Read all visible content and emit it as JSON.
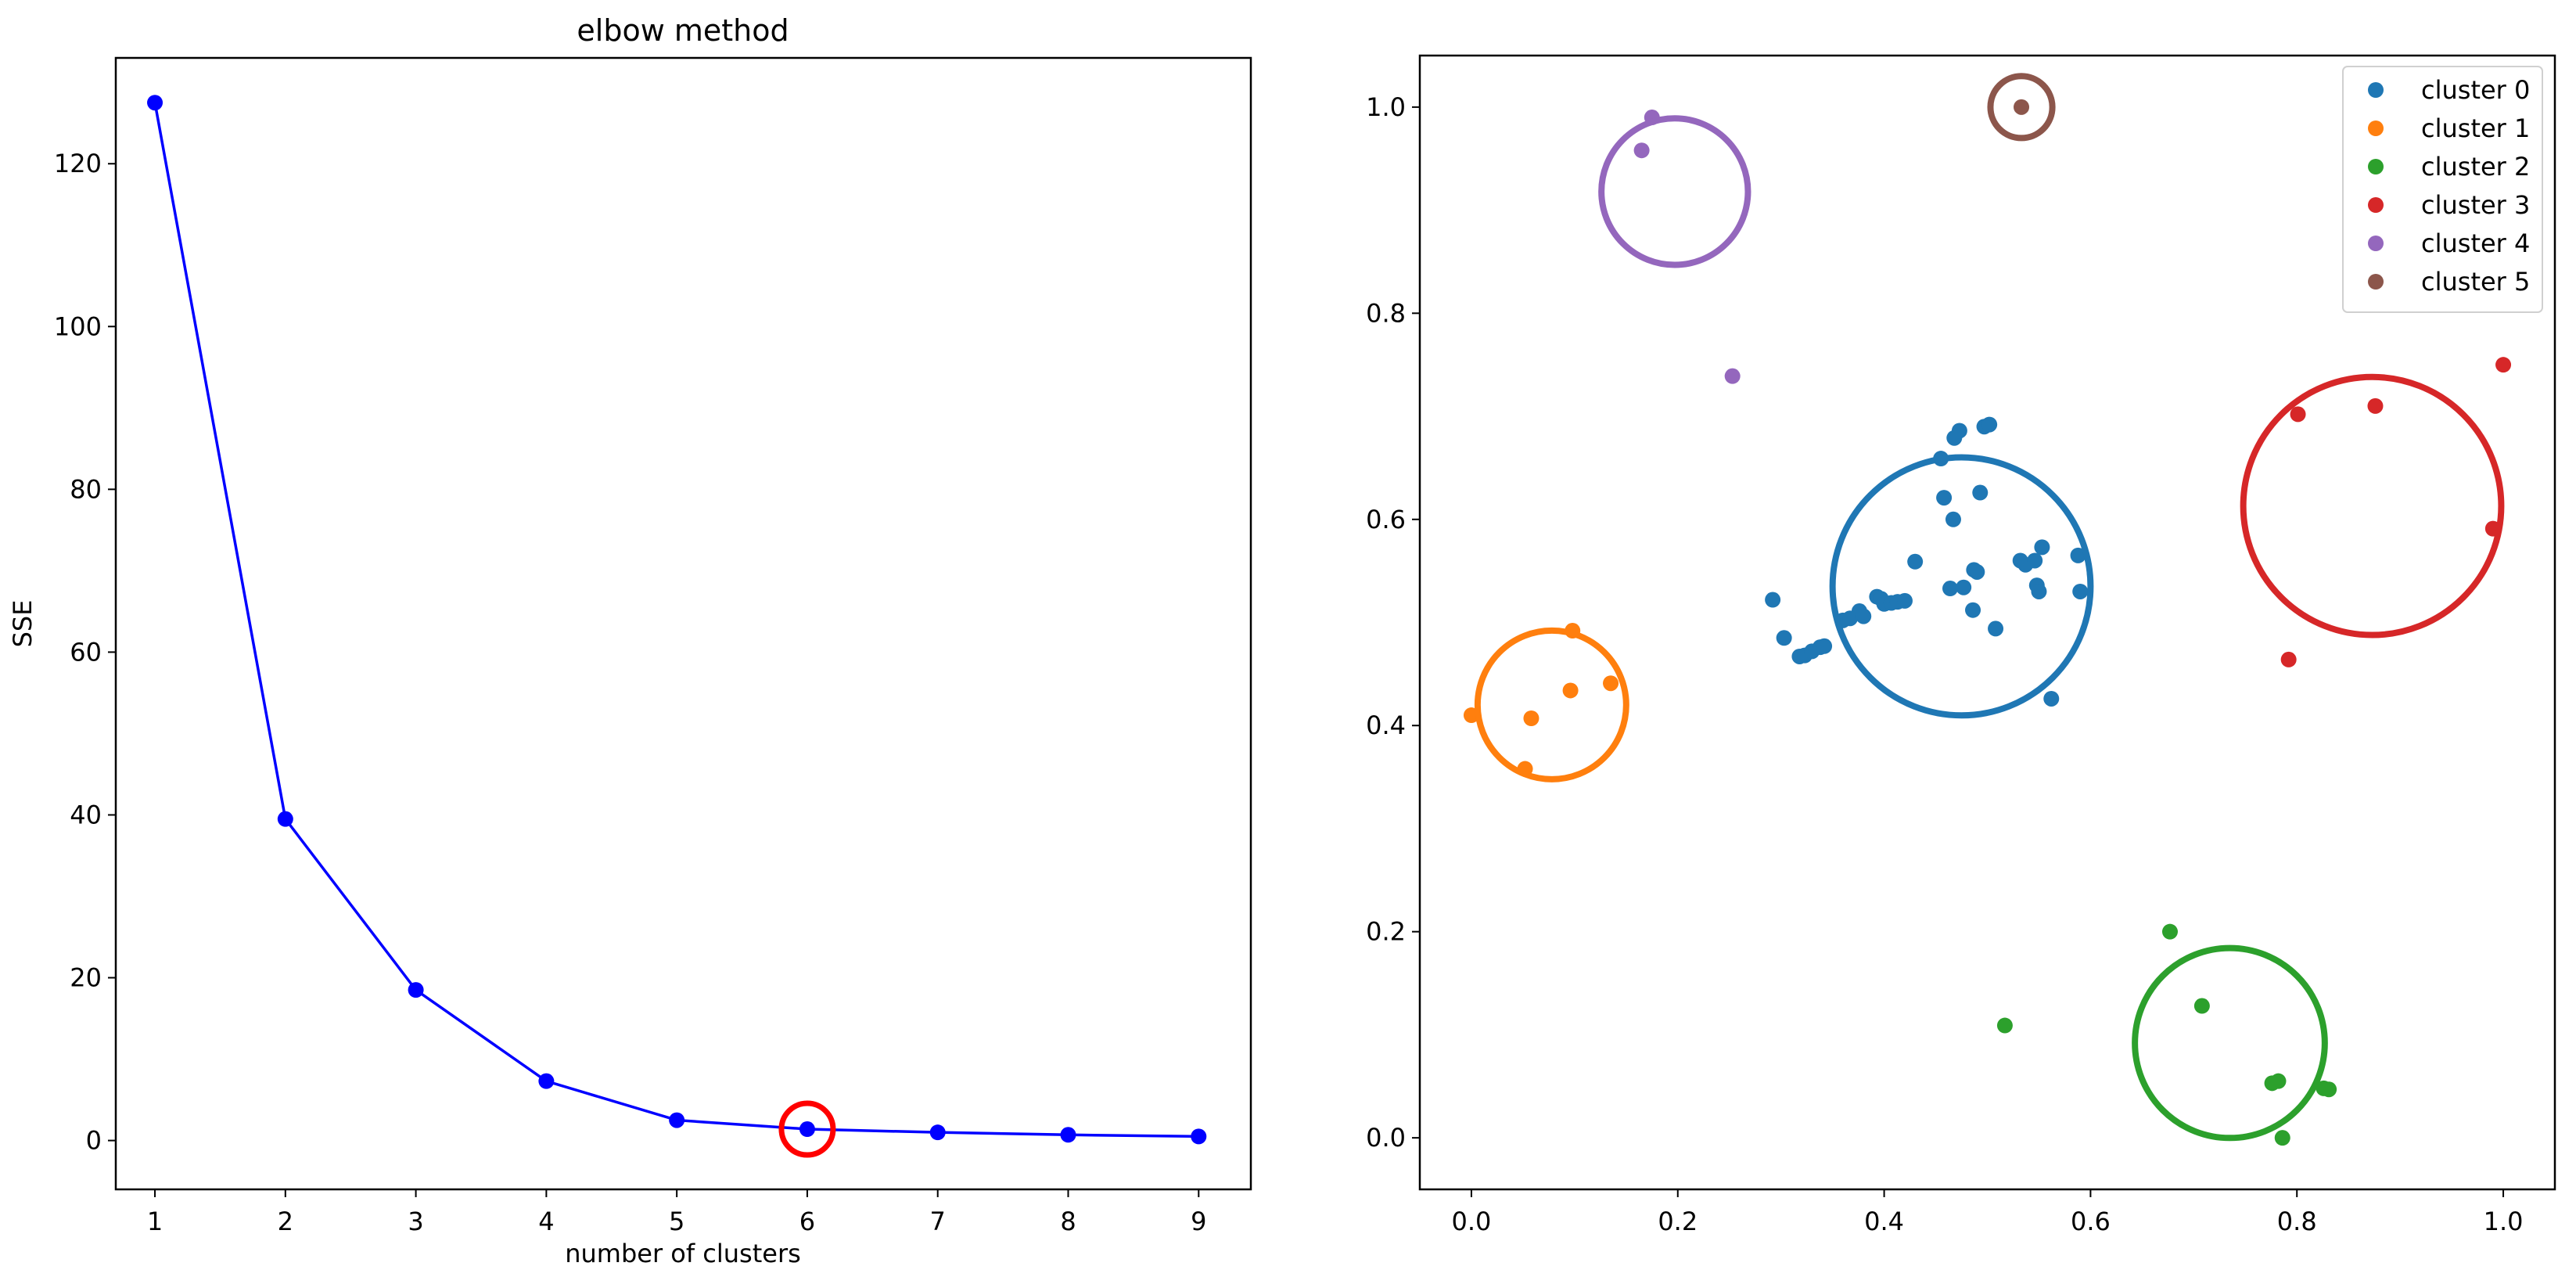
{
  "chart_data": [
    {
      "type": "line",
      "title": "elbow method",
      "xlabel": "number of clusters",
      "ylabel": "SSE",
      "xlim": [
        0.7,
        9.4
      ],
      "ylim": [
        -6,
        133
      ],
      "xticks": [
        1,
        2,
        3,
        4,
        5,
        6,
        7,
        8,
        9
      ],
      "yticks": [
        0,
        20,
        40,
        60,
        80,
        100,
        120
      ],
      "grid": false,
      "series": [
        {
          "color": "#0000ff",
          "marker": "circle",
          "x": [
            1,
            2,
            3,
            4,
            5,
            6,
            7,
            8,
            9
          ],
          "y": [
            127.5,
            39.5,
            18.5,
            7.3,
            2.5,
            1.4,
            1.0,
            0.7,
            0.5
          ]
        }
      ],
      "annotations": [
        {
          "shape": "circle",
          "x": 6,
          "y": 1.4,
          "color": "#ff0000"
        }
      ]
    },
    {
      "type": "scatter",
      "title": "",
      "xlabel": "",
      "ylabel": "",
      "xlim": [
        -0.05,
        1.05
      ],
      "ylim": [
        -0.05,
        1.05
      ],
      "xticks": [
        0.0,
        0.2,
        0.4,
        0.6,
        0.8,
        1.0
      ],
      "yticks": [
        0.0,
        0.2,
        0.4,
        0.6,
        0.8,
        1.0
      ],
      "grid": false,
      "legend": {
        "position": "top-right"
      },
      "series": [
        {
          "name": "cluster 0",
          "color": "#1f77b4",
          "points": [
            [
              0.292,
              0.522
            ],
            [
              0.303,
              0.485
            ],
            [
              0.318,
              0.467
            ],
            [
              0.323,
              0.468
            ],
            [
              0.33,
              0.472
            ],
            [
              0.338,
              0.476
            ],
            [
              0.342,
              0.477
            ],
            [
              0.36,
              0.502
            ],
            [
              0.367,
              0.504
            ],
            [
              0.376,
              0.511
            ],
            [
              0.38,
              0.506
            ],
            [
              0.393,
              0.525
            ],
            [
              0.397,
              0.523
            ],
            [
              0.4,
              0.518
            ],
            [
              0.407,
              0.519
            ],
            [
              0.413,
              0.52
            ],
            [
              0.42,
              0.521
            ],
            [
              0.43,
              0.559
            ],
            [
              0.455,
              0.659
            ],
            [
              0.458,
              0.621
            ],
            [
              0.464,
              0.533
            ],
            [
              0.467,
              0.6
            ],
            [
              0.468,
              0.679
            ],
            [
              0.473,
              0.686
            ],
            [
              0.477,
              0.534
            ],
            [
              0.486,
              0.512
            ],
            [
              0.487,
              0.551
            ],
            [
              0.49,
              0.549
            ],
            [
              0.493,
              0.626
            ],
            [
              0.497,
              0.69
            ],
            [
              0.502,
              0.692
            ],
            [
              0.508,
              0.494
            ],
            [
              0.532,
              0.56
            ],
            [
              0.537,
              0.556
            ],
            [
              0.546,
              0.56
            ],
            [
              0.548,
              0.536
            ],
            [
              0.55,
              0.53
            ],
            [
              0.553,
              0.573
            ],
            [
              0.562,
              0.426
            ],
            [
              0.588,
              0.565
            ],
            [
              0.59,
              0.53
            ]
          ],
          "circle": {
            "cx": 0.475,
            "cy": 0.535,
            "r": 0.125
          }
        },
        {
          "name": "cluster 1",
          "color": "#ff7f0e",
          "points": [
            [
              0.0,
              0.41
            ],
            [
              0.052,
              0.358
            ],
            [
              0.058,
              0.407
            ],
            [
              0.096,
              0.434
            ],
            [
              0.098,
              0.492
            ],
            [
              0.135,
              0.441
            ]
          ],
          "circle": {
            "cx": 0.078,
            "cy": 0.42,
            "r": 0.072
          }
        },
        {
          "name": "cluster 2",
          "color": "#2ca02c",
          "points": [
            [
              0.517,
              0.109
            ],
            [
              0.677,
              0.2
            ],
            [
              0.708,
              0.128
            ],
            [
              0.776,
              0.053
            ],
            [
              0.782,
              0.055
            ],
            [
              0.786,
              0.0
            ],
            [
              0.826,
              0.048
            ],
            [
              0.831,
              0.047
            ]
          ],
          "circle": {
            "cx": 0.735,
            "cy": 0.092,
            "r": 0.092
          }
        },
        {
          "name": "cluster 3",
          "color": "#d62728",
          "points": [
            [
              0.792,
              0.464
            ],
            [
              0.801,
              0.702
            ],
            [
              0.876,
              0.71
            ],
            [
              0.99,
              0.591
            ],
            [
              1.0,
              0.75
            ]
          ],
          "circle": {
            "cx": 0.873,
            "cy": 0.613,
            "r": 0.125
          }
        },
        {
          "name": "cluster 4",
          "color": "#9467bd",
          "points": [
            [
              0.165,
              0.958
            ],
            [
              0.175,
              0.99
            ],
            [
              0.253,
              0.739
            ]
          ],
          "circle": {
            "cx": 0.197,
            "cy": 0.918,
            "r": 0.071
          }
        },
        {
          "name": "cluster 5",
          "color": "#8c564b",
          "points": [
            [
              0.533,
              1.0
            ]
          ],
          "circle": {
            "cx": 0.533,
            "cy": 1.0,
            "r": 0.03
          }
        }
      ]
    }
  ]
}
